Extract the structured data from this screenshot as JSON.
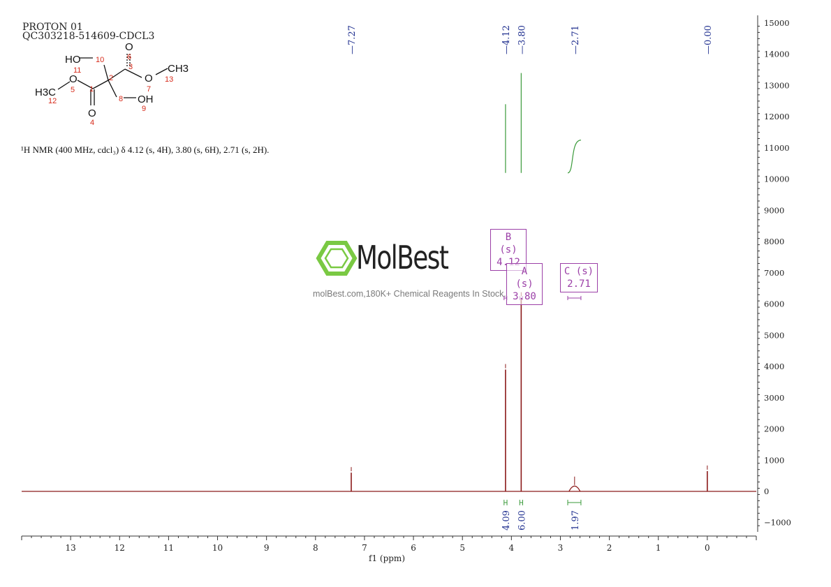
{
  "header": {
    "line1": "PROTON 01",
    "line2": "QC303218-514609-CDCL3"
  },
  "nmr_text": "¹H NMR (400 MHz, cdcl₃) δ 4.12 (s, 4H), 3.80 (s, 6H), 2.71 (s, 2H).",
  "watermark": {
    "brand": "MolBest",
    "tagline": "molBest.com,180K+ Chemical Reagents In Stock."
  },
  "structure_labels": {
    "ho": "HO",
    "oh": "OH",
    "ch3_right": "CH3",
    "h3c_left": "H3C",
    "o_top": "O",
    "o_bottom": "O",
    "o_left": "O",
    "o_right": "O",
    "n1": "1",
    "n2": "2",
    "n3": "3",
    "n4": "4",
    "n5": "5",
    "n6": "6",
    "n7": "7",
    "n8": "8",
    "n9": "9",
    "n10": "10",
    "n11": "11",
    "n12": "12",
    "n13": "13"
  },
  "peak_boxes": [
    {
      "label": "B (s)",
      "value": "4.12"
    },
    {
      "label": "A (s)",
      "value": "3.80"
    },
    {
      "label": "C (s)",
      "value": "2.71"
    }
  ],
  "colors": {
    "spectrum": "#8b1a1a",
    "integral_curve": "#3a9a3a",
    "peak_label": "#1f2f8f",
    "integral_label": "#1f2f8f",
    "peak_box": "#9b3fa7",
    "structure_number": "#d62a1a",
    "logo_green": "#7ac943"
  },
  "chart_data": {
    "type": "line",
    "xlabel": "f1 (ppm)",
    "xlim": [
      14,
      -1
    ],
    "x_reversed": true,
    "x_ticks": [
      13,
      12,
      11,
      10,
      9,
      8,
      7,
      6,
      5,
      4,
      3,
      2,
      1,
      0
    ],
    "ylim": [
      -1500,
      15000
    ],
    "y_ticks": [
      15000,
      14000,
      13000,
      12000,
      11000,
      10000,
      9000,
      8000,
      7000,
      6000,
      5000,
      4000,
      3000,
      2000,
      1000,
      0,
      -1000
    ],
    "peaks": [
      {
        "ppm": 7.27,
        "height": 600,
        "label": "7.27"
      },
      {
        "ppm": 4.12,
        "height": 3900,
        "label": "4.12"
      },
      {
        "ppm": 3.8,
        "height": 6200,
        "label": "3.80"
      },
      {
        "ppm": 2.71,
        "height": 250,
        "label": "2.71"
      },
      {
        "ppm": 0.0,
        "height": 650,
        "label": "0.00"
      }
    ],
    "integrals": [
      {
        "center": 4.12,
        "from": 4.15,
        "to": 4.09,
        "value": "4.09"
      },
      {
        "center": 3.8,
        "from": 3.83,
        "to": 3.77,
        "value": "6.00"
      },
      {
        "center": 2.71,
        "from": 2.85,
        "to": 2.58,
        "value": "1.97"
      }
    ],
    "integral_curves": [
      {
        "ppm": 4.12,
        "y_start": 10200,
        "y_end": 12400,
        "shape": "step"
      },
      {
        "ppm": 3.8,
        "y_start": 10200,
        "y_end": 13400,
        "shape": "step"
      },
      {
        "ppm_start": 2.85,
        "ppm_end": 2.58,
        "y_start": 10200,
        "y_end": 11250,
        "shape": "sigmoid"
      }
    ]
  }
}
